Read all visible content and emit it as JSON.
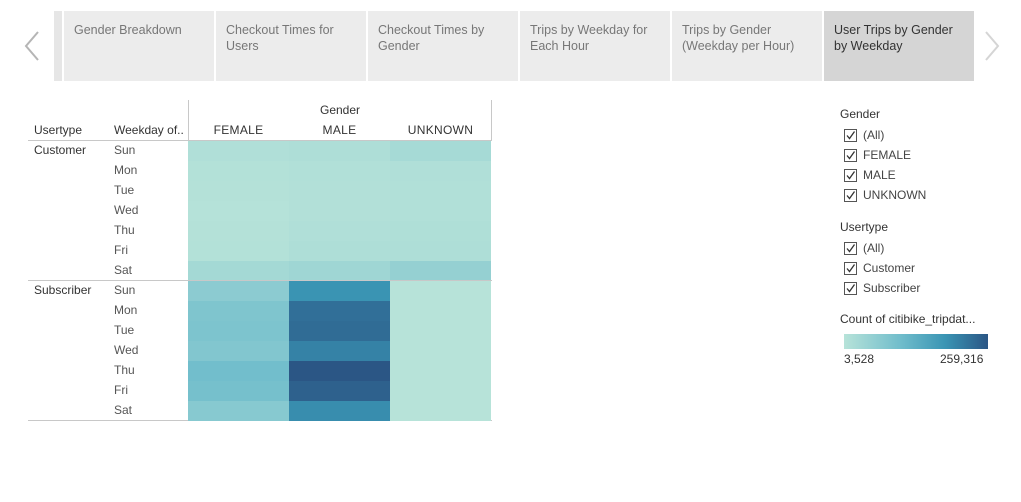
{
  "tabs": [
    {
      "label": "Gender Breakdown",
      "active": false
    },
    {
      "label": "Checkout Times for Users",
      "active": false
    },
    {
      "label": "Checkout Times by Gender",
      "active": false
    },
    {
      "label": "Trips by Weekday for Each Hour",
      "active": false
    },
    {
      "label": "Trips by Gender (Weekday per Hour)",
      "active": false
    },
    {
      "label": "User Trips by Gender by Weekday",
      "active": true
    }
  ],
  "nav": {
    "prev_icon": "chevron-left-icon",
    "next_icon": "chevron-right-icon"
  },
  "table": {
    "column_group_header": "Gender",
    "row_header_usertype": "Usertype",
    "row_header_weekday": "Weekday of..",
    "columns": [
      "FEMALE",
      "MALE",
      "UNKNOWN"
    ],
    "usertypes": [
      "Customer",
      "Subscriber"
    ],
    "weekdays": [
      "Sun",
      "Mon",
      "Tue",
      "Wed",
      "Thu",
      "Fri",
      "Sat"
    ]
  },
  "chart_data": {
    "type": "heatmap",
    "x": [
      "FEMALE",
      "MALE",
      "UNKNOWN"
    ],
    "y_groups": [
      "Customer",
      "Subscriber"
    ],
    "y": [
      "Sun",
      "Mon",
      "Tue",
      "Wed",
      "Thu",
      "Fri",
      "Sat"
    ],
    "values": {
      "Customer": [
        [
          12000,
          14000,
          24000
        ],
        [
          8000,
          11000,
          12000
        ],
        [
          7000,
          10000,
          11000
        ],
        [
          6000,
          9000,
          11000
        ],
        [
          7000,
          12000,
          13000
        ],
        [
          8000,
          14000,
          14000
        ],
        [
          26000,
          32000,
          44000
        ]
      ],
      "Subscriber": [
        [
          55000,
          175000,
          4000
        ],
        [
          70000,
          225000,
          4000
        ],
        [
          72000,
          230000,
          4000
        ],
        [
          66000,
          200000,
          4000
        ],
        [
          85000,
          259316,
          4000
        ],
        [
          80000,
          245000,
          4000
        ],
        [
          60000,
          185000,
          3528
        ]
      ]
    },
    "color_min": 3528,
    "color_max": 259316
  },
  "filters": {
    "gender": {
      "title": "Gender",
      "options": [
        "(All)",
        "FEMALE",
        "MALE",
        "UNKNOWN"
      ]
    },
    "usertype": {
      "title": "Usertype",
      "options": [
        "(All)",
        "Customer",
        "Subscriber"
      ]
    }
  },
  "legend": {
    "title": "Count of citibike_tripdat...",
    "min_label": "3,528",
    "max_label": "259,316",
    "colors": [
      "#b7e3d9",
      "#6fbccb",
      "#3a95b4",
      "#2b5685"
    ]
  }
}
